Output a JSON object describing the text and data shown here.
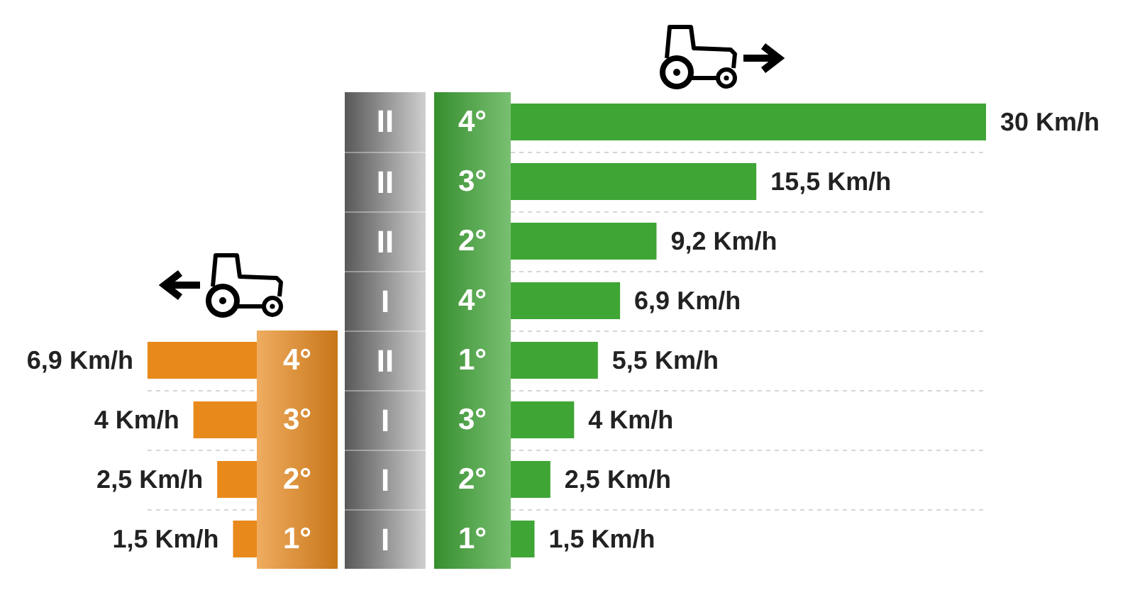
{
  "chart_data": [
    {
      "type": "bar",
      "orientation": "horizontal",
      "categories": [
        "4°",
        "3°",
        "2°",
        "1°"
      ],
      "values": [
        6.9,
        4,
        2.5,
        1.5
      ],
      "value_labels": [
        "6,9 Km/h",
        "4 Km/h",
        "2,5 Km/h",
        "1,5 Km/h"
      ],
      "color": "#e8891c",
      "xlim": [
        6.9,
        0
      ],
      "grid": "y",
      "tick_labels": "y"
    },
    {
      "type": "other",
      "categories": [
        "II",
        "II",
        "II",
        "I",
        "II",
        "I",
        "I",
        "I"
      ]
    },
    {
      "type": "bar",
      "orientation": "horizontal",
      "categories": [
        "4°",
        "3°",
        "2°",
        "4°",
        "1°",
        "3°",
        "2°",
        "1°"
      ],
      "values": [
        30,
        15.5,
        9.2,
        6.9,
        5.5,
        4,
        2.5,
        1.5
      ],
      "value_labels": [
        "30 Km/h",
        "15,5 Km/h",
        "9,2 Km/h",
        "6,9 Km/h",
        "5,5 Km/h",
        "4 Km/h",
        "2,5 Km/h",
        "1,5 Km/h"
      ],
      "color": "#3fa535",
      "xlim": [
        0,
        30
      ],
      "grid": "y",
      "tick_labels": "y"
    }
  ]
}
